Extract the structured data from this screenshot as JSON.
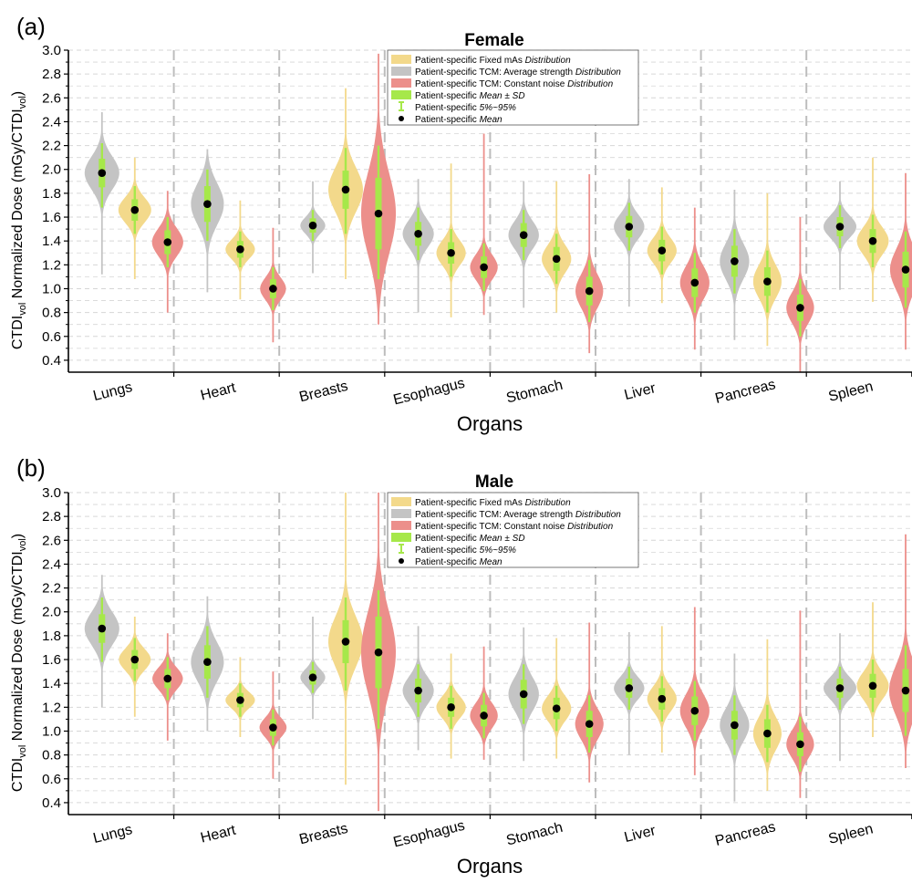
{
  "colors": {
    "fixed_mAs": "#f3d98b",
    "tcm_avg": "#c4c4c4",
    "tcm_const": "#ec8f8b",
    "mean_sd": "#a6e84a",
    "whisker": "#a6e84a",
    "mean_dot": "#000000",
    "grid": "#d6d6d6",
    "separator": "#bdbdbd"
  },
  "chart_data": [
    {
      "panel": "(a)",
      "type": "violin",
      "title": "Female",
      "xlabel": "Organs",
      "ylabel": "CTDI",
      "ylabel_sub1": "vol",
      "ylabel_mid": " Normalized Dose (mGy/CTDI",
      "ylabel_sub2": "vol",
      "ylabel_end": ")",
      "ylim": [
        0.3,
        3.0
      ],
      "yticks": [
        "0.4",
        "0.6",
        "0.8",
        "1.0",
        "1.2",
        "1.4",
        "1.6",
        "1.8",
        "2.0",
        "2.2",
        "2.4",
        "2.6",
        "2.8",
        "3.0"
      ],
      "grid": true,
      "legend_position": "top-center",
      "legend": [
        {
          "swatch": "fixed_mAs",
          "plain": "Patient-specific Fixed mAs ",
          "italic": "Distribution"
        },
        {
          "swatch": "tcm_avg",
          "plain": "Patient-specific TCM: Average strength ",
          "italic": "Distribution"
        },
        {
          "swatch": "tcm_const",
          "plain": "Patient-specific TCM: Constant noise ",
          "italic": "Distribution"
        },
        {
          "swatch": "mean_sd",
          "plain": "Patient-specific ",
          "italic": "Mean ± SD"
        },
        {
          "swatch": "whisker",
          "plain": "Patient-specific ",
          "italic": "5%~95%"
        },
        {
          "swatch": "dot",
          "plain": "Patient-specific ",
          "italic": "Mean"
        }
      ],
      "series_order": [
        "tcm_avg",
        "fixed_mAs",
        "tcm_const"
      ],
      "categories": [
        "Lungs",
        "Heart",
        "Breasts",
        "Esophagus",
        "Stomach",
        "Liver",
        "Pancreas",
        "Spleen"
      ],
      "data": [
        {
          "organ": "Lungs",
          "violins": [
            {
              "series": "tcm_avg",
              "mean": 1.97,
              "sd": 0.12,
              "p5": 1.68,
              "p95": 2.22,
              "min": 1.12,
              "max": 2.48,
              "width": 1.0
            },
            {
              "series": "fixed_mAs",
              "mean": 1.66,
              "sd": 0.09,
              "p5": 1.46,
              "p95": 1.86,
              "min": 1.08,
              "max": 2.1,
              "width": 0.95
            },
            {
              "series": "tcm_const",
              "mean": 1.39,
              "sd": 0.1,
              "p5": 1.18,
              "p95": 1.6,
              "min": 0.8,
              "max": 1.82,
              "width": 0.9
            }
          ]
        },
        {
          "organ": "Heart",
          "violins": [
            {
              "series": "tcm_avg",
              "mean": 1.71,
              "sd": 0.15,
              "p5": 1.4,
              "p95": 2.0,
              "min": 0.97,
              "max": 2.17,
              "width": 0.95
            },
            {
              "series": "fixed_mAs",
              "mean": 1.33,
              "sd": 0.07,
              "p5": 1.18,
              "p95": 1.48,
              "min": 0.91,
              "max": 1.74,
              "width": 0.85
            },
            {
              "series": "tcm_const",
              "mean": 1.0,
              "sd": 0.08,
              "p5": 0.82,
              "p95": 1.18,
              "min": 0.55,
              "max": 1.51,
              "width": 0.75
            }
          ]
        },
        {
          "organ": "Breasts",
          "violins": [
            {
              "series": "tcm_avg",
              "mean": 1.53,
              "sd": 0.06,
              "p5": 1.4,
              "p95": 1.66,
              "min": 1.13,
              "max": 1.9,
              "width": 0.72
            },
            {
              "series": "fixed_mAs",
              "mean": 1.83,
              "sd": 0.16,
              "p5": 1.46,
              "p95": 2.18,
              "min": 1.08,
              "max": 2.68,
              "width": 1.0
            },
            {
              "series": "tcm_const",
              "mean": 1.63,
              "sd": 0.3,
              "p5": 1.08,
              "p95": 2.2,
              "min": 0.7,
              "max": 2.97,
              "width": 1.0
            }
          ]
        },
        {
          "organ": "Esophagus",
          "violins": [
            {
              "series": "tcm_avg",
              "mean": 1.46,
              "sd": 0.1,
              "p5": 1.24,
              "p95": 1.68,
              "min": 0.8,
              "max": 1.92,
              "width": 0.9
            },
            {
              "series": "fixed_mAs",
              "mean": 1.3,
              "sd": 0.09,
              "p5": 1.1,
              "p95": 1.5,
              "min": 0.76,
              "max": 2.05,
              "width": 0.85
            },
            {
              "series": "tcm_const",
              "mean": 1.18,
              "sd": 0.09,
              "p5": 0.98,
              "p95": 1.38,
              "min": 0.78,
              "max": 2.3,
              "width": 0.8
            }
          ]
        },
        {
          "organ": "Stomach",
          "violins": [
            {
              "series": "tcm_avg",
              "mean": 1.45,
              "sd": 0.1,
              "p5": 1.24,
              "p95": 1.66,
              "min": 0.84,
              "max": 1.9,
              "width": 0.88
            },
            {
              "series": "fixed_mAs",
              "mean": 1.25,
              "sd": 0.1,
              "p5": 1.04,
              "p95": 1.46,
              "min": 0.8,
              "max": 1.9,
              "width": 0.85
            },
            {
              "series": "tcm_const",
              "mean": 0.98,
              "sd": 0.12,
              "p5": 0.72,
              "p95": 1.24,
              "min": 0.46,
              "max": 1.96,
              "width": 0.8
            }
          ]
        },
        {
          "organ": "Liver",
          "violins": [
            {
              "series": "tcm_avg",
              "mean": 1.52,
              "sd": 0.09,
              "p5": 1.32,
              "p95": 1.72,
              "min": 0.85,
              "max": 1.92,
              "width": 0.88
            },
            {
              "series": "fixed_mAs",
              "mean": 1.32,
              "sd": 0.09,
              "p5": 1.12,
              "p95": 1.52,
              "min": 0.88,
              "max": 1.85,
              "width": 0.85
            },
            {
              "series": "tcm_const",
              "mean": 1.05,
              "sd": 0.12,
              "p5": 0.8,
              "p95": 1.3,
              "min": 0.49,
              "max": 1.68,
              "width": 0.85
            }
          ]
        },
        {
          "organ": "Pancreas",
          "violins": [
            {
              "series": "tcm_avg",
              "mean": 1.23,
              "sd": 0.13,
              "p5": 0.96,
              "p95": 1.5,
              "min": 0.57,
              "max": 1.83,
              "width": 0.85
            },
            {
              "series": "fixed_mAs",
              "mean": 1.06,
              "sd": 0.12,
              "p5": 0.8,
              "p95": 1.32,
              "min": 0.52,
              "max": 1.8,
              "width": 0.82
            },
            {
              "series": "tcm_const",
              "mean": 0.84,
              "sd": 0.11,
              "p5": 0.6,
              "p95": 1.08,
              "min": 0.3,
              "max": 1.6,
              "width": 0.8
            }
          ]
        },
        {
          "organ": "Spleen",
          "violins": [
            {
              "series": "tcm_avg",
              "mean": 1.52,
              "sd": 0.08,
              "p5": 1.34,
              "p95": 1.7,
              "min": 0.99,
              "max": 1.9,
              "width": 0.95
            },
            {
              "series": "fixed_mAs",
              "mean": 1.4,
              "sd": 0.1,
              "p5": 1.18,
              "p95": 1.62,
              "min": 0.89,
              "max": 2.1,
              "width": 0.92
            },
            {
              "series": "tcm_const",
              "mean": 1.16,
              "sd": 0.15,
              "p5": 0.84,
              "p95": 1.48,
              "min": 0.49,
              "max": 1.97,
              "width": 0.9
            }
          ]
        }
      ]
    },
    {
      "panel": "(b)",
      "type": "violin",
      "title": "Male",
      "xlabel": "Organs",
      "ylabel": "CTDI",
      "ylabel_sub1": "vol",
      "ylabel_mid": " Normalized Dose (mGy/CTDI",
      "ylabel_sub2": "vol",
      "ylabel_end": ")",
      "ylim": [
        0.3,
        3.0
      ],
      "yticks": [
        "0.4",
        "0.6",
        "0.8",
        "1.0",
        "1.2",
        "1.4",
        "1.6",
        "1.8",
        "2.0",
        "2.2",
        "2.4",
        "2.6",
        "2.8",
        "3.0"
      ],
      "grid": true,
      "legend_position": "top-center",
      "legend": [
        {
          "swatch": "fixed_mAs",
          "plain": "Patient-specific Fixed mAs ",
          "italic": "Distribution"
        },
        {
          "swatch": "tcm_avg",
          "plain": "Patient-specific TCM: Average strength ",
          "italic": "Distribution"
        },
        {
          "swatch": "tcm_const",
          "plain": "Patient-specific TCM: Constant noise ",
          "italic": "Distribution"
        },
        {
          "swatch": "mean_sd",
          "plain": "Patient-specific ",
          "italic": "Mean ± SD"
        },
        {
          "swatch": "whisker",
          "plain": "Patient-specific ",
          "italic": "5%~95%"
        },
        {
          "swatch": "dot",
          "plain": "Patient-specific ",
          "italic": "Mean"
        }
      ],
      "series_order": [
        "tcm_avg",
        "fixed_mAs",
        "tcm_const"
      ],
      "categories": [
        "Lungs",
        "Heart",
        "Breasts",
        "Esophagus",
        "Stomach",
        "Liver",
        "Pancreas",
        "Spleen"
      ],
      "data": [
        {
          "organ": "Lungs",
          "violins": [
            {
              "series": "tcm_avg",
              "mean": 1.86,
              "sd": 0.12,
              "p5": 1.58,
              "p95": 2.12,
              "min": 1.2,
              "max": 2.31,
              "width": 1.0
            },
            {
              "series": "fixed_mAs",
              "mean": 1.6,
              "sd": 0.08,
              "p5": 1.42,
              "p95": 1.78,
              "min": 1.12,
              "max": 1.96,
              "width": 0.92
            },
            {
              "series": "tcm_const",
              "mean": 1.44,
              "sd": 0.08,
              "p5": 1.26,
              "p95": 1.62,
              "min": 0.92,
              "max": 1.82,
              "width": 0.88
            }
          ]
        },
        {
          "organ": "Heart",
          "violins": [
            {
              "series": "tcm_avg",
              "mean": 1.58,
              "sd": 0.14,
              "p5": 1.28,
              "p95": 1.88,
              "min": 1.0,
              "max": 2.13,
              "width": 0.95
            },
            {
              "series": "fixed_mAs",
              "mean": 1.26,
              "sd": 0.06,
              "p5": 1.12,
              "p95": 1.4,
              "min": 0.95,
              "max": 1.62,
              "width": 0.85
            },
            {
              "series": "tcm_const",
              "mean": 1.03,
              "sd": 0.07,
              "p5": 0.88,
              "p95": 1.18,
              "min": 0.6,
              "max": 1.5,
              "width": 0.78
            }
          ]
        },
        {
          "organ": "Breasts",
          "violins": [
            {
              "series": "tcm_avg",
              "mean": 1.45,
              "sd": 0.06,
              "p5": 1.32,
              "p95": 1.58,
              "min": 1.1,
              "max": 1.96,
              "width": 0.72
            },
            {
              "series": "fixed_mAs",
              "mean": 1.75,
              "sd": 0.18,
              "p5": 1.34,
              "p95": 2.12,
              "min": 0.55,
              "max": 3.0,
              "width": 1.0
            },
            {
              "series": "tcm_const",
              "mean": 1.66,
              "sd": 0.3,
              "p5": 1.02,
              "p95": 2.18,
              "min": 0.33,
              "max": 3.0,
              "width": 1.0
            }
          ]
        },
        {
          "organ": "Esophagus",
          "violins": [
            {
              "series": "tcm_avg",
              "mean": 1.34,
              "sd": 0.1,
              "p5": 1.12,
              "p95": 1.56,
              "min": 0.84,
              "max": 1.88,
              "width": 0.9
            },
            {
              "series": "fixed_mAs",
              "mean": 1.2,
              "sd": 0.08,
              "p5": 1.02,
              "p95": 1.38,
              "min": 0.77,
              "max": 1.65,
              "width": 0.85
            },
            {
              "series": "tcm_const",
              "mean": 1.13,
              "sd": 0.09,
              "p5": 0.94,
              "p95": 1.32,
              "min": 0.76,
              "max": 1.71,
              "width": 0.8
            }
          ]
        },
        {
          "organ": "Stomach",
          "violins": [
            {
              "series": "tcm_avg",
              "mean": 1.31,
              "sd": 0.12,
              "p5": 1.06,
              "p95": 1.56,
              "min": 0.75,
              "max": 1.87,
              "width": 0.88
            },
            {
              "series": "fixed_mAs",
              "mean": 1.19,
              "sd": 0.09,
              "p5": 1.0,
              "p95": 1.38,
              "min": 0.77,
              "max": 1.78,
              "width": 0.85
            },
            {
              "series": "tcm_const",
              "mean": 1.06,
              "sd": 0.11,
              "p5": 0.82,
              "p95": 1.3,
              "min": 0.57,
              "max": 1.91,
              "width": 0.82
            }
          ]
        },
        {
          "organ": "Liver",
          "violins": [
            {
              "series": "tcm_avg",
              "mean": 1.36,
              "sd": 0.08,
              "p5": 1.18,
              "p95": 1.54,
              "min": 0.8,
              "max": 1.83,
              "width": 0.88
            },
            {
              "series": "fixed_mAs",
              "mean": 1.27,
              "sd": 0.09,
              "p5": 1.08,
              "p95": 1.46,
              "min": 0.82,
              "max": 1.88,
              "width": 0.85
            },
            {
              "series": "tcm_const",
              "mean": 1.17,
              "sd": 0.12,
              "p5": 0.92,
              "p95": 1.42,
              "min": 0.63,
              "max": 2.04,
              "width": 0.85
            }
          ]
        },
        {
          "organ": "Pancreas",
          "violins": [
            {
              "series": "tcm_avg",
              "mean": 1.05,
              "sd": 0.12,
              "p5": 0.8,
              "p95": 1.3,
              "min": 0.41,
              "max": 1.65,
              "width": 0.85
            },
            {
              "series": "fixed_mAs",
              "mean": 0.98,
              "sd": 0.12,
              "p5": 0.74,
              "p95": 1.22,
              "min": 0.5,
              "max": 1.77,
              "width": 0.82
            },
            {
              "series": "tcm_const",
              "mean": 0.89,
              "sd": 0.1,
              "p5": 0.66,
              "p95": 1.12,
              "min": 0.44,
              "max": 2.01,
              "width": 0.8
            }
          ]
        },
        {
          "organ": "Spleen",
          "violins": [
            {
              "series": "tcm_avg",
              "mean": 1.36,
              "sd": 0.08,
              "p5": 1.18,
              "p95": 1.54,
              "min": 0.75,
              "max": 1.82,
              "width": 0.95
            },
            {
              "series": "fixed_mAs",
              "mean": 1.38,
              "sd": 0.1,
              "p5": 1.16,
              "p95": 1.6,
              "min": 0.95,
              "max": 2.08,
              "width": 0.92
            },
            {
              "series": "tcm_const",
              "mean": 1.34,
              "sd": 0.18,
              "p5": 0.96,
              "p95": 1.72,
              "min": 0.69,
              "max": 2.65,
              "width": 0.95
            }
          ]
        }
      ]
    }
  ]
}
